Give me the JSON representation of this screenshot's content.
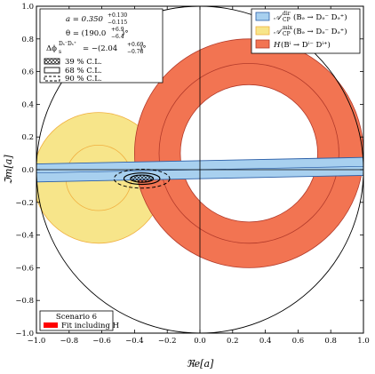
{
  "chart_data": {
    "type": "scatter",
    "xlabel": "ℜe[a]",
    "ylabel": "ℑm[a]",
    "xlim": [
      -1.0,
      1.0
    ],
    "ylim": [
      -1.0,
      1.0
    ],
    "x_ticks": [
      "−1.0",
      "−0.8",
      "−0.6",
      "−0.4",
      "−0.2",
      "0.0",
      "0.2",
      "0.4",
      "0.6",
      "0.8",
      "1.0"
    ],
    "y_ticks": [
      "1.0",
      "0.8",
      "0.6",
      "0.4",
      "0.2",
      "0.0",
      "−0.2",
      "−0.4",
      "−0.6",
      "−0.8",
      "−1.0"
    ],
    "grid": false,
    "unit_circle": {
      "center": [
        0,
        0
      ],
      "radius": 1.0
    },
    "regions": {
      "dir_band": {
        "center": [
          0,
          0.0
        ],
        "slope": 0.02,
        "halfwidth": 0.055,
        "color": "#a8d0ef",
        "edge": "#2b5fa8"
      },
      "mix_disc": {
        "center": [
          -0.62,
          -0.05
        ],
        "radius": 0.4,
        "inner_radius": 0.2,
        "color": "#f7e58a",
        "edge": "#f0b040"
      },
      "h_ring": {
        "center": [
          0.3,
          0.1
        ],
        "outer_radius": 0.7,
        "inner_radius": 0.42,
        "mid_radius": 0.55,
        "color": "#f27452",
        "edge": "#b23a2a"
      }
    },
    "fit_contours": [
      {
        "cl": "39",
        "center": [
          -0.355,
          -0.055
        ],
        "rx": 0.07,
        "ry": 0.022,
        "style": "hatched"
      },
      {
        "cl": "68",
        "center": [
          -0.355,
          -0.055
        ],
        "rx": 0.11,
        "ry": 0.035,
        "style": "solid"
      },
      {
        "cl": "90",
        "center": [
          -0.355,
          -0.055
        ],
        "rx": 0.17,
        "ry": 0.058,
        "style": "dashed"
      }
    ],
    "info_box": {
      "line1": "a = 0.350⁺⁰·¹³⁰₋₀.₁₁₅",
      "a_label": "a = 0.350",
      "a_up": "+0.130",
      "a_dn": "−0.115",
      "theta_label": "θ = (190.0",
      "theta_up": "+6.9",
      "theta_dn": "−6.4",
      "theta_unit": ")°",
      "dphi_label": "Δϕ",
      "dphi_sup": "Dₛ⁻Dₛ⁺",
      "dphi_sub": "s",
      "dphi_val": "= −(2.04",
      "dphi_up": "+0.69",
      "dphi_dn": "−0.78",
      "dphi_unit": ")°"
    },
    "cl_legend": [
      {
        "label": "39 % C.L.",
        "style": "hatched"
      },
      {
        "label": "68 % C.L.",
        "style": "solid"
      },
      {
        "label": "90 % C.L.",
        "style": "dashed"
      }
    ],
    "observable_legend": [
      {
        "label_main": "𝒜",
        "sup": "dir",
        "sub": "CP",
        "arg": "(Bₔ → Dₔ⁻ Dₔ⁺)",
        "color": "#a8d0ef",
        "edge": "#2b5fa8"
      },
      {
        "label_main": "𝒜",
        "sup": "mix",
        "sub": "CP",
        "arg": "(Bₔ → Dₔ⁻ Dₔ⁺)",
        "color": "#f7e58a",
        "edge": "#f0b040"
      },
      {
        "label_main": "H",
        "sup": "",
        "sub": "",
        "arg": "(Bⁱ → Dⁱ⁻ Dⁱ⁺)",
        "color": "#f27452",
        "edge": "#b23a2a"
      }
    ],
    "scenario_box": {
      "title": "Scenario 6",
      "entry": "Fit including H",
      "entry_color": "#ff0000"
    }
  }
}
